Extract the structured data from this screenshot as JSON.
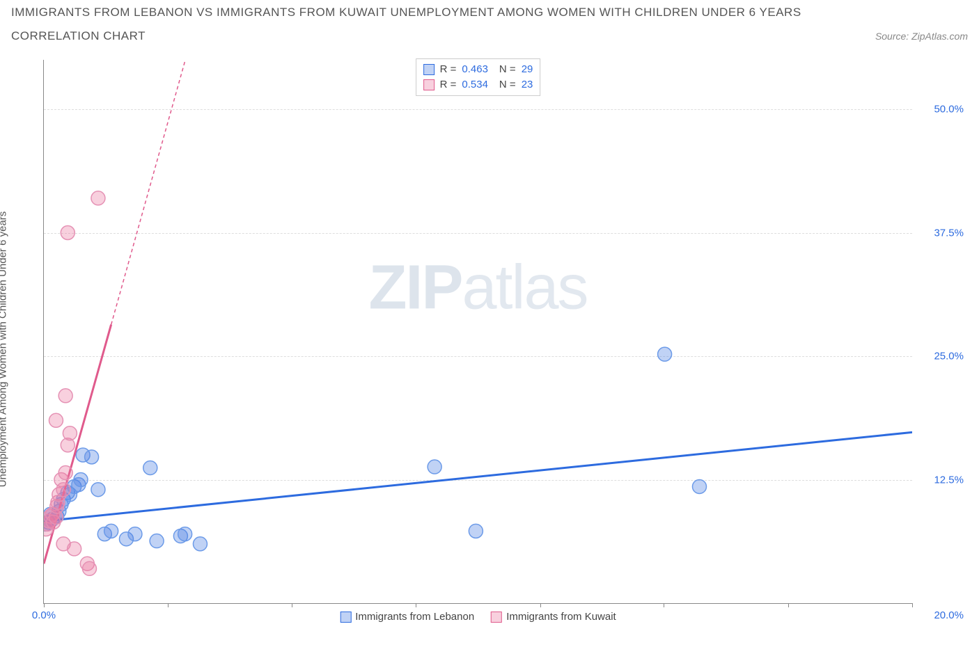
{
  "header": {
    "title_line1": "IMMIGRANTS FROM LEBANON VS IMMIGRANTS FROM KUWAIT UNEMPLOYMENT AMONG WOMEN WITH CHILDREN UNDER 6 YEARS",
    "title_line2": "CORRELATION CHART",
    "source_prefix": "Source: ",
    "source_name": "ZipAtlas.com"
  },
  "chart": {
    "type": "scatter",
    "y_axis_title": "Unemployment Among Women with Children Under 6 years",
    "xlim": [
      0,
      20
    ],
    "ylim": [
      0,
      55
    ],
    "x_ticks_pct": [
      0,
      2.85,
      5.71,
      8.57,
      11.43,
      14.28,
      17.14,
      20
    ],
    "x_tick_labels": {
      "start": "0.0%",
      "end": "20.0%"
    },
    "y_gridlines": [
      12.5,
      25.0,
      37.5,
      50.0
    ],
    "y_tick_labels": [
      "12.5%",
      "25.0%",
      "37.5%",
      "50.0%"
    ],
    "background_color": "#ffffff",
    "grid_color": "#dddddd",
    "axis_color": "#888888",
    "series": [
      {
        "name": "Immigrants from Lebanon",
        "color_fill": "rgba(74,127,226,0.35)",
        "color_stroke": "#6b9ae8",
        "marker_radius": 10,
        "R": 0.463,
        "N": 29,
        "trend": {
          "x1": 0,
          "y1": 8.3,
          "x2": 20,
          "y2": 17.3,
          "color": "#2d6bdf",
          "width": 3,
          "dash_beyond": false
        },
        "points": [
          [
            0.05,
            8.0
          ],
          [
            0.1,
            8.2
          ],
          [
            0.15,
            9.0
          ],
          [
            0.2,
            8.5
          ],
          [
            0.3,
            8.8
          ],
          [
            0.35,
            9.3
          ],
          [
            0.4,
            10.0
          ],
          [
            0.45,
            10.5
          ],
          [
            0.55,
            11.2
          ],
          [
            0.6,
            11.0
          ],
          [
            0.7,
            11.8
          ],
          [
            0.8,
            12.0
          ],
          [
            0.85,
            12.5
          ],
          [
            0.9,
            15.0
          ],
          [
            1.1,
            14.8
          ],
          [
            1.25,
            11.5
          ],
          [
            1.4,
            7.0
          ],
          [
            1.55,
            7.3
          ],
          [
            1.9,
            6.5
          ],
          [
            2.1,
            7.0
          ],
          [
            2.45,
            13.7
          ],
          [
            2.6,
            6.3
          ],
          [
            3.15,
            6.8
          ],
          [
            3.25,
            7.0
          ],
          [
            3.6,
            6.0
          ],
          [
            9.0,
            13.8
          ],
          [
            9.95,
            7.3
          ],
          [
            14.3,
            25.2
          ],
          [
            15.1,
            11.8
          ]
        ]
      },
      {
        "name": "Immigrants from Kuwait",
        "color_fill": "rgba(235,120,160,0.35)",
        "color_stroke": "#e591b4",
        "marker_radius": 10,
        "R": 0.534,
        "N": 23,
        "trend": {
          "x1": 0,
          "y1": 4.0,
          "x2": 1.55,
          "y2": 28.2,
          "dash_x2": 3.45,
          "dash_y2": 58.0,
          "color": "#e05a8c",
          "width": 3
        },
        "points": [
          [
            0.05,
            7.5
          ],
          [
            0.08,
            8.0
          ],
          [
            0.12,
            8.3
          ],
          [
            0.15,
            8.8
          ],
          [
            0.2,
            9.0
          ],
          [
            0.22,
            8.2
          ],
          [
            0.28,
            8.7
          ],
          [
            0.3,
            9.8
          ],
          [
            0.32,
            10.2
          ],
          [
            0.35,
            11.0
          ],
          [
            0.4,
            12.5
          ],
          [
            0.45,
            11.5
          ],
          [
            0.5,
            13.2
          ],
          [
            0.55,
            16.0
          ],
          [
            0.6,
            17.2
          ],
          [
            0.28,
            18.5
          ],
          [
            0.5,
            21.0
          ],
          [
            0.45,
            6.0
          ],
          [
            0.7,
            5.5
          ],
          [
            1.0,
            4.0
          ],
          [
            1.05,
            3.5
          ],
          [
            0.55,
            37.5
          ],
          [
            1.25,
            41.0
          ]
        ]
      }
    ],
    "legend_top": [
      {
        "swatch": "blue",
        "r_label": "R =",
        "r_value": "0.463",
        "n_label": "N =",
        "n_value": "29"
      },
      {
        "swatch": "pink",
        "r_label": "R =",
        "r_value": "0.534",
        "n_label": "N =",
        "n_value": "23"
      }
    ],
    "legend_bottom": [
      {
        "swatch": "blue",
        "label": "Immigrants from Lebanon"
      },
      {
        "swatch": "pink",
        "label": "Immigrants from Kuwait"
      }
    ],
    "watermark": {
      "bold": "ZIP",
      "light": "atlas"
    }
  }
}
